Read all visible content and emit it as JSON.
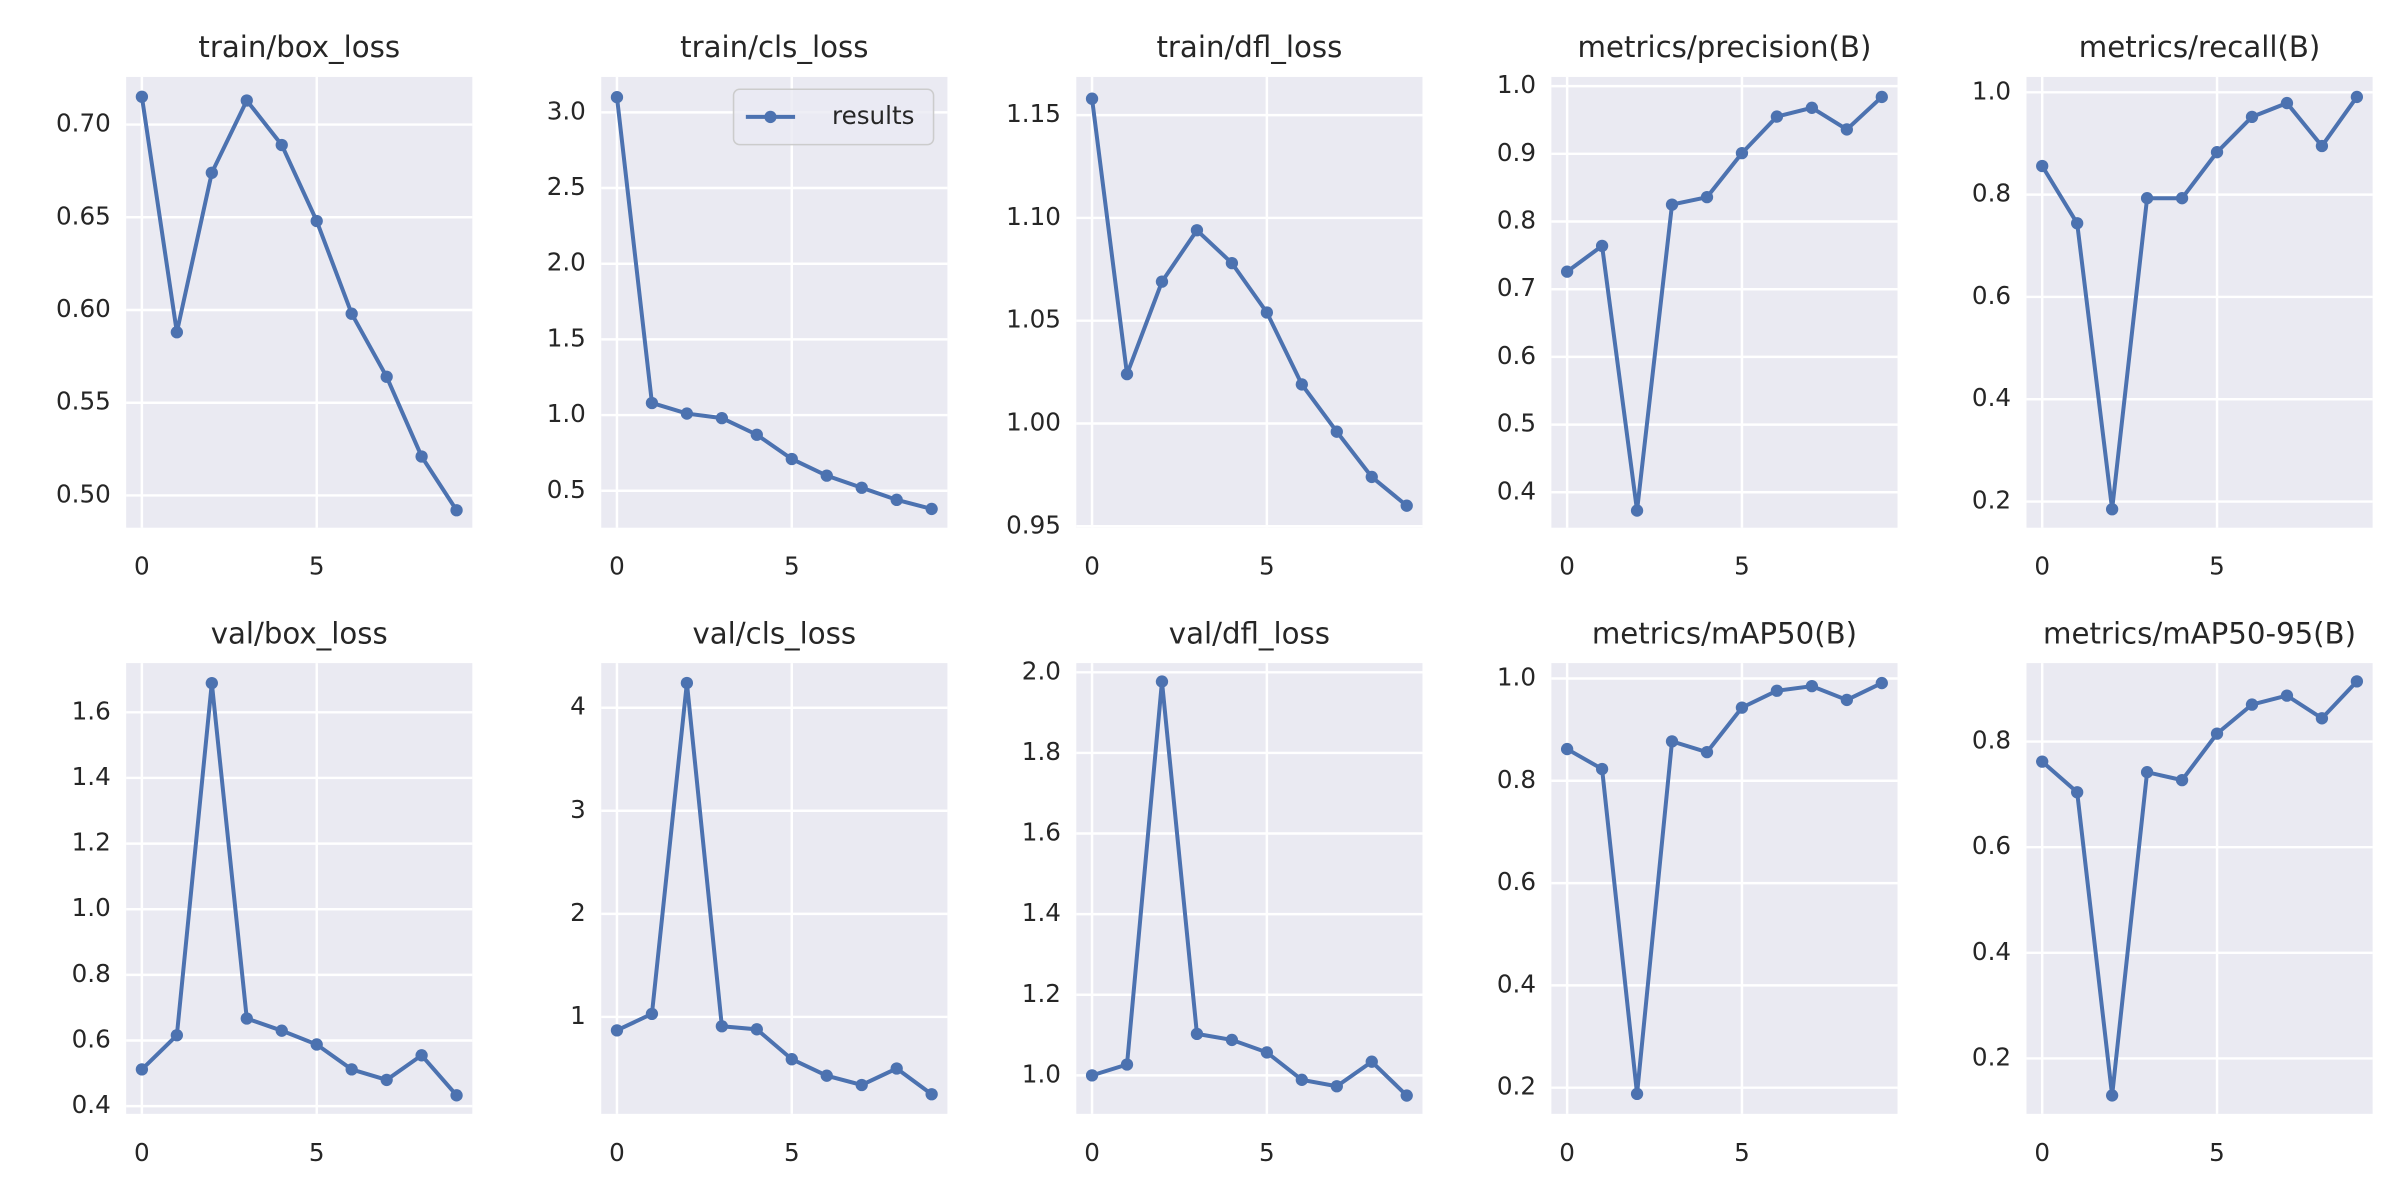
{
  "chart_data": [
    {
      "type": "line",
      "title": "train/box_loss",
      "x": [
        0,
        1,
        2,
        3,
        4,
        5,
        6,
        7,
        8,
        9
      ],
      "series": [
        {
          "color": "#4c72b0",
          "values": [
            0.715,
            0.588,
            0.674,
            0.713,
            0.689,
            0.648,
            0.598,
            0.564,
            0.521,
            0.492
          ]
        }
      ],
      "xlim": [
        -0.45,
        9.45
      ],
      "xticks": [
        0,
        5
      ],
      "ylim": [
        0.4826,
        0.7257
      ],
      "yticks": [
        {
          "value": 0.5,
          "label": "0.50"
        },
        0.55,
        {
          "value": 0.6,
          "label": "0.60"
        },
        0.65,
        {
          "value": 0.7,
          "label": "0.70"
        }
      ],
      "grid": true
    },
    {
      "type": "line",
      "title": "train/cls_loss",
      "x": [
        0,
        1,
        2,
        3,
        4,
        5,
        6,
        7,
        8,
        9
      ],
      "series": [
        {
          "name": "results",
          "color": "#4c72b0",
          "values": [
            3.1,
            1.08,
            1.01,
            0.98,
            0.87,
            0.71,
            0.6,
            0.52,
            0.44,
            0.38
          ]
        }
      ],
      "xlim": [
        -0.45,
        9.45
      ],
      "xticks": [
        0,
        5
      ],
      "ylim": [
        0.256,
        3.234
      ],
      "yticks": [
        0.5,
        {
          "value": 1,
          "label": "1.0"
        },
        1.5,
        {
          "value": 2,
          "label": "2.0"
        },
        2.5,
        {
          "value": 3,
          "label": "3.0"
        }
      ],
      "grid": true,
      "legend": "upper right"
    },
    {
      "type": "line",
      "title": "train/dfl_loss",
      "x": [
        0,
        1,
        2,
        3,
        4,
        5,
        6,
        7,
        8,
        9
      ],
      "series": [
        {
          "color": "#4c72b0",
          "values": [
            1.158,
            1.024,
            1.069,
            1.094,
            1.078,
            1.054,
            1.019,
            0.996,
            0.974,
            0.96
          ]
        }
      ],
      "xlim": [
        -0.45,
        9.45
      ],
      "xticks": [
        0,
        5
      ],
      "ylim": [
        0.9493,
        1.1686
      ],
      "yticks": [
        0.95,
        {
          "value": 1,
          "label": "1.00"
        },
        1.05,
        {
          "value": 1.1,
          "label": "1.10"
        },
        1.15
      ],
      "grid": true
    },
    {
      "type": "line",
      "title": "metrics/precision(B)",
      "x": [
        0,
        1,
        2,
        3,
        4,
        5,
        6,
        7,
        8,
        9
      ],
      "series": [
        {
          "color": "#4c72b0",
          "values": [
            0.726,
            0.764,
            0.373,
            0.825,
            0.836,
            0.901,
            0.955,
            0.968,
            0.936,
            0.984
          ]
        }
      ],
      "xlim": [
        -0.45,
        9.45
      ],
      "xticks": [
        0,
        5
      ],
      "ylim": [
        0.3477,
        1.0136
      ],
      "yticks": [
        0.4,
        0.5,
        0.6,
        0.7,
        0.8,
        0.9,
        {
          "value": 1,
          "label": "1.0"
        }
      ],
      "grid": true
    },
    {
      "type": "line",
      "title": "metrics/recall(B)",
      "x": [
        0,
        1,
        2,
        3,
        4,
        5,
        6,
        7,
        8,
        9
      ],
      "series": [
        {
          "color": "#4c72b0",
          "values": [
            0.856,
            0.744,
            0.185,
            0.793,
            0.793,
            0.883,
            0.952,
            0.979,
            0.895,
            0.991
          ]
        }
      ],
      "xlim": [
        -0.45,
        9.45
      ],
      "xticks": [
        0,
        5
      ],
      "ylim": [
        0.1489,
        1.0301
      ],
      "yticks": [
        0.2,
        0.4,
        0.6,
        0.8,
        {
          "value": 1,
          "label": "1.0"
        }
      ],
      "grid": true
    },
    {
      "type": "line",
      "title": "val/box_loss",
      "x": [
        0,
        1,
        2,
        3,
        4,
        5,
        6,
        7,
        8,
        9
      ],
      "series": [
        {
          "color": "#4c72b0",
          "values": [
            0.512,
            0.616,
            1.689,
            0.667,
            0.63,
            0.588,
            0.512,
            0.48,
            0.555,
            0.433
          ]
        }
      ],
      "xlim": [
        -0.45,
        9.45
      ],
      "xticks": [
        0,
        5
      ],
      "ylim": [
        0.3766,
        1.75
      ],
      "yticks": [
        0.4,
        0.6,
        0.8,
        {
          "value": 1,
          "label": "1.0"
        },
        1.2,
        1.4,
        1.6
      ],
      "grid": true
    },
    {
      "type": "line",
      "title": "val/cls_loss",
      "x": [
        0,
        1,
        2,
        3,
        4,
        5,
        6,
        7,
        8,
        9
      ],
      "series": [
        {
          "color": "#4c72b0",
          "values": [
            0.87,
            1.03,
            4.24,
            0.91,
            0.88,
            0.59,
            0.43,
            0.34,
            0.5,
            0.25
          ]
        }
      ],
      "xlim": [
        -0.45,
        9.45
      ],
      "xticks": [
        0,
        5
      ],
      "ylim": [
        0.06,
        4.433
      ],
      "yticks": [
        1,
        2,
        3,
        4
      ],
      "grid": true
    },
    {
      "type": "line",
      "title": "val/dfl_loss",
      "x": [
        0,
        1,
        2,
        3,
        4,
        5,
        6,
        7,
        8,
        9
      ],
      "series": [
        {
          "color": "#4c72b0",
          "values": [
            1.0,
            1.027,
            1.977,
            1.103,
            1.088,
            1.057,
            0.989,
            0.973,
            1.034,
            0.95
          ]
        }
      ],
      "xlim": [
        -0.45,
        9.45
      ],
      "xticks": [
        0,
        5
      ],
      "ylim": [
        0.9046,
        2.0229
      ],
      "yticks": [
        {
          "value": 1,
          "label": "1.0"
        },
        1.2,
        1.4,
        1.6,
        1.8,
        {
          "value": 2,
          "label": "2.0"
        }
      ],
      "grid": true
    },
    {
      "type": "line",
      "title": "metrics/mAP50(B)",
      "x": [
        0,
        1,
        2,
        3,
        4,
        5,
        6,
        7,
        8,
        9
      ],
      "series": [
        {
          "color": "#4c72b0",
          "values": [
            0.862,
            0.823,
            0.188,
            0.877,
            0.856,
            0.943,
            0.976,
            0.985,
            0.958,
            0.991
          ]
        }
      ],
      "xlim": [
        -0.45,
        9.45
      ],
      "xticks": [
        0,
        5
      ],
      "ylim": [
        0.1489,
        1.0301
      ],
      "yticks": [
        0.2,
        0.4,
        0.6,
        0.8,
        {
          "value": 1,
          "label": "1.0"
        }
      ],
      "grid": true
    },
    {
      "type": "line",
      "title": "metrics/mAP50-95(B)",
      "x": [
        0,
        1,
        2,
        3,
        4,
        5,
        6,
        7,
        8,
        9
      ],
      "series": [
        {
          "color": "#4c72b0",
          "values": [
            0.762,
            0.704,
            0.13,
            0.742,
            0.727,
            0.815,
            0.87,
            0.887,
            0.844,
            0.914
          ]
        }
      ],
      "xlim": [
        -0.45,
        9.45
      ],
      "xticks": [
        0,
        5
      ],
      "ylim": [
        0.0951,
        0.9486
      ],
      "yticks": [
        0.2,
        0.4,
        0.6,
        0.8
      ],
      "grid": true
    }
  ]
}
